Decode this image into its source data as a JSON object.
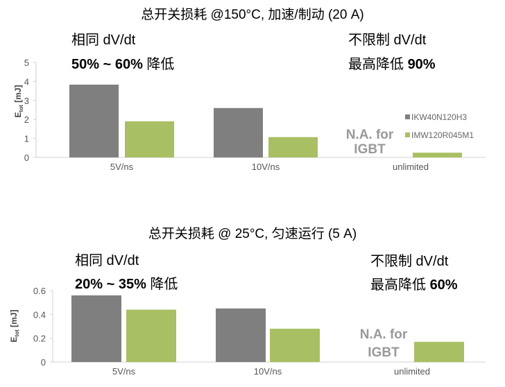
{
  "colors": {
    "IKW40N120H3": "#7f7f7f",
    "IMW120R045M1": "#a9bf63",
    "axis": "#d0d0d0",
    "na_text": "#999999"
  },
  "legend_placement": "right",
  "chart_data": [
    {
      "type": "bar",
      "title": "总开关损耗 @150°C, 加速/制动 (20 A)",
      "ylabel_main": "E",
      "ylabel_sub": "tot",
      "ylabel_unit": " [mJ]",
      "ylim": [
        0,
        5
      ],
      "yticks": [
        "0",
        "1",
        "2",
        "3",
        "4",
        "5"
      ],
      "categories": [
        "5V/ns",
        "10V/ns",
        "unlimited"
      ],
      "series": [
        {
          "name": "IKW40N120H3",
          "values": [
            3.83,
            2.6,
            null
          ]
        },
        {
          "name": "IMW120R045M1",
          "values": [
            1.9,
            1.07,
            0.25
          ]
        }
      ],
      "annotations": {
        "left_line1": "相同 dV/dt",
        "left_line2_bold": "50% ~ 60%",
        "left_line2_rest": " 降低",
        "right_line1": "不限制 dV/dt",
        "right_line2_rest": "最高降低 ",
        "right_line2_bold": "90%",
        "na_line1": "N.A. for",
        "na_line2": "IGBT"
      },
      "grid": false
    },
    {
      "type": "bar",
      "title": "总开关损耗 @ 25°C, 匀速运行 (5 A)",
      "ylabel_main": "E",
      "ylabel_sub": "tot",
      "ylabel_unit": " [mJ]",
      "ylim": [
        0,
        0.6
      ],
      "yticks": [
        "0",
        "0.2",
        "0.4",
        "0.6"
      ],
      "categories": [
        "5V/ns",
        "10V/ns",
        "unlimited"
      ],
      "series": [
        {
          "name": "IKW40N120H3",
          "values": [
            0.56,
            0.45,
            null
          ]
        },
        {
          "name": "IMW120R045M1",
          "values": [
            0.44,
            0.28,
            0.17
          ]
        }
      ],
      "annotations": {
        "left_line1": "相同 dV/dt",
        "left_line2_bold": "20% ~ 35%",
        "left_line2_rest": " 降低",
        "right_line1": "不限制 dV/dt",
        "right_line2_rest": "最高降低 ",
        "right_line2_bold": "60%",
        "na_line1": "N.A. for",
        "na_line2": "IGBT"
      },
      "grid": false
    }
  ]
}
